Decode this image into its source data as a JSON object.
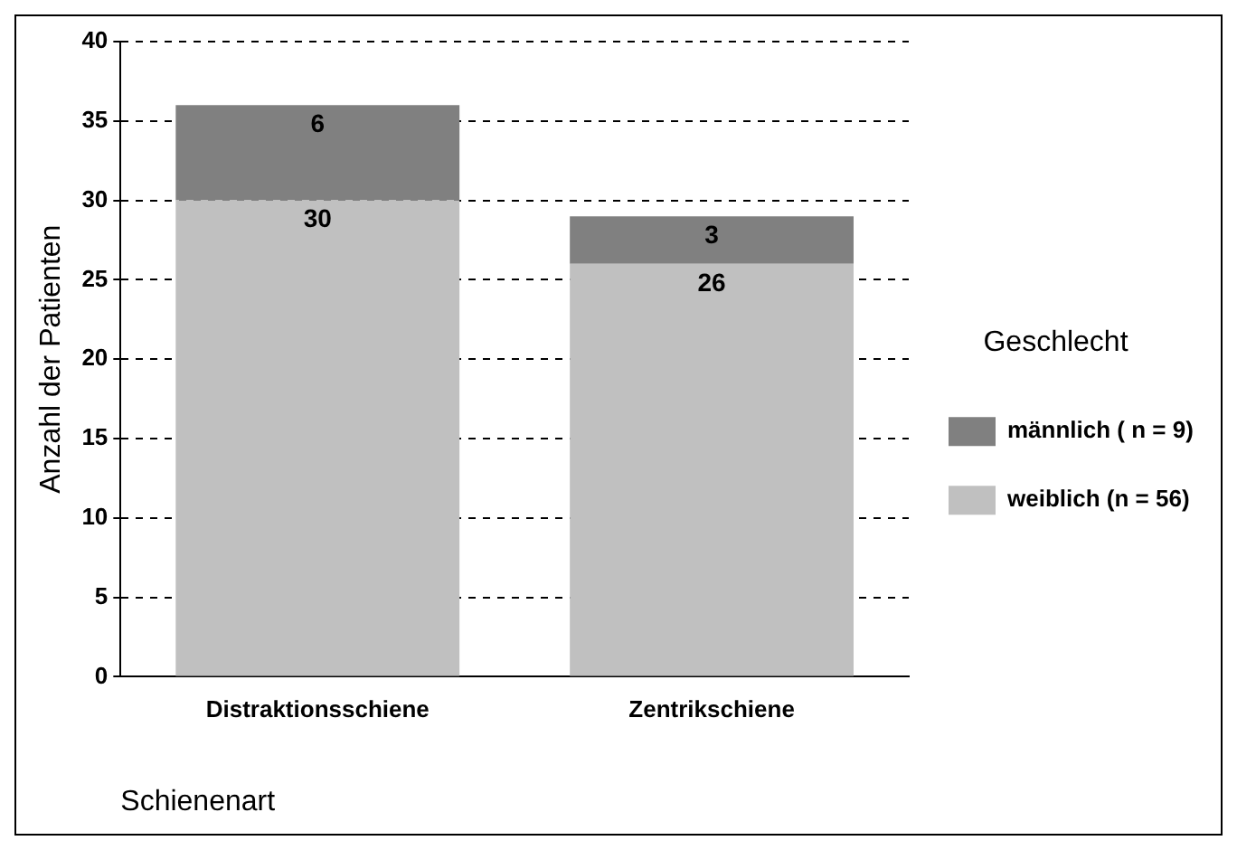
{
  "chart_data": {
    "type": "bar",
    "stacked": true,
    "categories": [
      "Distraktionsschiene",
      "Zentrikschiene"
    ],
    "series": [
      {
        "name": "weiblich (n = 56)",
        "color": "#c0c0c0",
        "values": [
          30,
          26
        ]
      },
      {
        "name": "männlich ( n = 9)",
        "color": "#808080",
        "values": [
          6,
          3
        ]
      }
    ],
    "ylim": [
      0,
      40
    ],
    "yticks": [
      0,
      5,
      10,
      15,
      20,
      25,
      30,
      35,
      40
    ],
    "grid": "y",
    "line_style": "dashed",
    "data_labels": true,
    "legend": "right",
    "legend_title": "Geschlecht",
    "xlabel": "Schienenart",
    "ylabel": "Anzahl der Patienten"
  }
}
